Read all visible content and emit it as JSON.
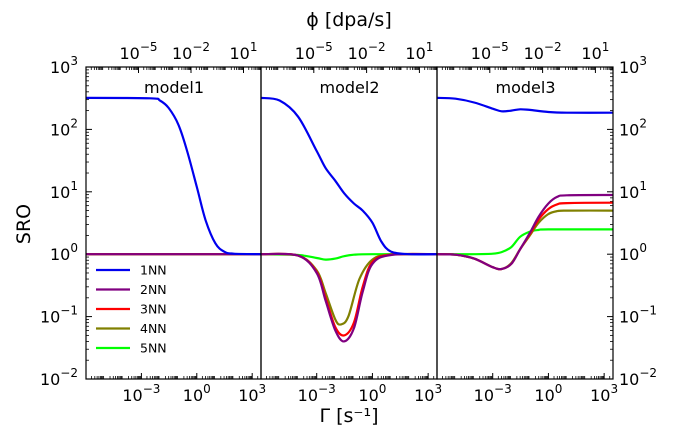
{
  "figure": {
    "top_axis_label": "ϕ [dpa/s]",
    "bottom_axis_label": "Γ [s⁻¹]",
    "y_axis_label": "SRO"
  },
  "chart_data": {
    "type": "line",
    "xscale": "log",
    "yscale": "log",
    "xlabel": "Γ [s⁻¹]",
    "x2label": "ϕ [dpa/s]",
    "ylabel": "SRO",
    "xlim": [
      1e-06,
      3000
    ],
    "x2lim": [
      1e-08,
      100
    ],
    "ylim": [
      0.01,
      1000
    ],
    "x_ticks": [
      {
        "value": 0.001,
        "base": "10",
        "exp": "−3"
      },
      {
        "value": 1,
        "base": "10",
        "exp": "0"
      },
      {
        "value": 1000,
        "base": "10",
        "exp": "3"
      }
    ],
    "x2_ticks": [
      {
        "value": 1e-05,
        "base": "10",
        "exp": "−5"
      },
      {
        "value": 0.01,
        "base": "10",
        "exp": "−2"
      },
      {
        "value": 10,
        "base": "10",
        "exp": "1"
      }
    ],
    "y_ticks": [
      {
        "value": 0.01,
        "base": "10",
        "exp": "−2"
      },
      {
        "value": 0.1,
        "base": "10",
        "exp": "−1"
      },
      {
        "value": 1,
        "base": "10",
        "exp": "0"
      },
      {
        "value": 10,
        "base": "10",
        "exp": "1"
      },
      {
        "value": 100,
        "base": "10",
        "exp": "2"
      },
      {
        "value": 1000,
        "base": "10",
        "exp": "3"
      }
    ],
    "legend": {
      "placement": "lower-left of model1",
      "entries": [
        {
          "name": "1NN",
          "color": "#0000ee"
        },
        {
          "name": "2NN",
          "color": "#800080"
        },
        {
          "name": "3NN",
          "color": "#ff0000"
        },
        {
          "name": "4NN",
          "color": "#808000"
        },
        {
          "name": "5NN",
          "color": "#00ff00"
        }
      ]
    },
    "panels": [
      {
        "title": "model1",
        "series": [
          {
            "name": "1NN",
            "color": "#0000ee",
            "points": [
              [
                1e-06,
                320
              ],
              [
                0.003,
                315
              ],
              [
                0.01,
                290
              ],
              [
                0.03,
                220
              ],
              [
                0.1,
                120
              ],
              [
                0.3,
                45
              ],
              [
                1,
                12
              ],
              [
                3,
                3.5
              ],
              [
                10,
                1.5
              ],
              [
                30,
                1.1
              ],
              [
                100,
                1.02
              ],
              [
                3000,
                1.0
              ]
            ]
          },
          {
            "name": "2NN",
            "color": "#800080",
            "points": [
              [
                1e-06,
                1.0
              ],
              [
                3000,
                1.0
              ]
            ]
          },
          {
            "name": "3NN",
            "color": "#ff0000",
            "points": [
              [
                1e-06,
                1.0
              ],
              [
                3000,
                1.0
              ]
            ]
          },
          {
            "name": "4NN",
            "color": "#808000",
            "points": [
              [
                1e-06,
                1.0
              ],
              [
                3000,
                1.0
              ]
            ]
          },
          {
            "name": "5NN",
            "color": "#00ff00",
            "points": [
              [
                1e-06,
                1.0
              ],
              [
                3000,
                1.0
              ]
            ]
          }
        ]
      },
      {
        "title": "model2",
        "series": [
          {
            "name": "1NN",
            "color": "#0000ee",
            "points": [
              [
                1e-06,
                320
              ],
              [
                1e-05,
                290
              ],
              [
                0.0001,
                160
              ],
              [
                0.001,
                45
              ],
              [
                0.003,
                24
              ],
              [
                0.01,
                15
              ],
              [
                0.03,
                9.5
              ],
              [
                0.1,
                6.5
              ],
              [
                0.3,
                5
              ],
              [
                1,
                3.2
              ],
              [
                3,
                1.6
              ],
              [
                10,
                1.1
              ],
              [
                100,
                1.0
              ],
              [
                3000,
                1.0
              ]
            ]
          },
          {
            "name": "2NN",
            "color": "#800080",
            "points": [
              [
                1e-06,
                1.0
              ],
              [
                0.0001,
                0.95
              ],
              [
                0.001,
                0.5
              ],
              [
                0.003,
                0.18
              ],
              [
                0.01,
                0.06
              ],
              [
                0.03,
                0.04
              ],
              [
                0.1,
                0.065
              ],
              [
                0.3,
                0.25
              ],
              [
                1,
                0.7
              ],
              [
                10,
                0.97
              ],
              [
                3000,
                1.0
              ]
            ]
          },
          {
            "name": "3NN",
            "color": "#ff0000",
            "points": [
              [
                1e-06,
                1.0
              ],
              [
                0.0001,
                0.95
              ],
              [
                0.001,
                0.52
              ],
              [
                0.003,
                0.2
              ],
              [
                0.01,
                0.068
              ],
              [
                0.03,
                0.05
              ],
              [
                0.1,
                0.08
              ],
              [
                0.3,
                0.3
              ],
              [
                1,
                0.75
              ],
              [
                10,
                0.98
              ],
              [
                3000,
                1.0
              ]
            ]
          },
          {
            "name": "4NN",
            "color": "#808000",
            "points": [
              [
                1e-06,
                1.0
              ],
              [
                0.0001,
                0.95
              ],
              [
                0.001,
                0.55
              ],
              [
                0.003,
                0.24
              ],
              [
                0.01,
                0.09
              ],
              [
                0.02,
                0.075
              ],
              [
                0.05,
                0.1
              ],
              [
                0.2,
                0.4
              ],
              [
                1,
                0.82
              ],
              [
                10,
                0.99
              ],
              [
                3000,
                1.0
              ]
            ]
          },
          {
            "name": "5NN",
            "color": "#00ff00",
            "points": [
              [
                1e-06,
                1.0
              ],
              [
                0.0001,
                0.97
              ],
              [
                0.001,
                0.87
              ],
              [
                0.003,
                0.82
              ],
              [
                0.01,
                0.85
              ],
              [
                0.03,
                0.93
              ],
              [
                0.1,
                0.98
              ],
              [
                1,
                1.0
              ],
              [
                3000,
                1.0
              ]
            ]
          }
        ]
      },
      {
        "title": "model3",
        "series": [
          {
            "name": "1NN",
            "color": "#0000ee",
            "points": [
              [
                1e-06,
                320
              ],
              [
                1e-05,
                310
              ],
              [
                0.0001,
                270
              ],
              [
                0.001,
                215
              ],
              [
                0.003,
                195
              ],
              [
                0.01,
                200
              ],
              [
                0.03,
                210
              ],
              [
                0.1,
                205
              ],
              [
                1,
                190
              ],
              [
                10,
                185
              ],
              [
                3000,
                185
              ]
            ]
          },
          {
            "name": "2NN",
            "color": "#800080",
            "points": [
              [
                1e-06,
                1.0
              ],
              [
                1e-05,
                0.98
              ],
              [
                0.0001,
                0.85
              ],
              [
                0.001,
                0.62
              ],
              [
                0.003,
                0.58
              ],
              [
                0.01,
                0.7
              ],
              [
                0.03,
                1.2
              ],
              [
                0.1,
                2.2
              ],
              [
                0.3,
                4
              ],
              [
                1,
                6.5
              ],
              [
                3,
                8.3
              ],
              [
                10,
                8.8
              ],
              [
                3000,
                8.9
              ]
            ]
          },
          {
            "name": "3NN",
            "color": "#ff0000",
            "points": [
              [
                1e-06,
                1.0
              ],
              [
                1e-05,
                0.98
              ],
              [
                0.0001,
                0.85
              ],
              [
                0.001,
                0.62
              ],
              [
                0.003,
                0.58
              ],
              [
                0.01,
                0.7
              ],
              [
                0.03,
                1.2
              ],
              [
                0.1,
                2.1
              ],
              [
                0.3,
                3.6
              ],
              [
                1,
                5.3
              ],
              [
                3,
                6.3
              ],
              [
                10,
                6.6
              ],
              [
                3000,
                6.7
              ]
            ]
          },
          {
            "name": "4NN",
            "color": "#808000",
            "points": [
              [
                1e-06,
                1.0
              ],
              [
                1e-05,
                0.98
              ],
              [
                0.0001,
                0.85
              ],
              [
                0.001,
                0.62
              ],
              [
                0.003,
                0.58
              ],
              [
                0.01,
                0.72
              ],
              [
                0.03,
                1.2
              ],
              [
                0.1,
                2.0
              ],
              [
                0.3,
                3.2
              ],
              [
                1,
                4.4
              ],
              [
                3,
                4.9
              ],
              [
                10,
                5.0
              ],
              [
                3000,
                5.0
              ]
            ]
          },
          {
            "name": "5NN",
            "color": "#00ff00",
            "points": [
              [
                1e-06,
                1.0
              ],
              [
                1e-05,
                1.0
              ],
              [
                0.0001,
                1.0
              ],
              [
                0.001,
                1.02
              ],
              [
                0.003,
                1.08
              ],
              [
                0.01,
                1.3
              ],
              [
                0.03,
                1.9
              ],
              [
                0.1,
                2.3
              ],
              [
                0.3,
                2.45
              ],
              [
                1,
                2.5
              ],
              [
                3000,
                2.5
              ]
            ]
          }
        ]
      }
    ]
  }
}
